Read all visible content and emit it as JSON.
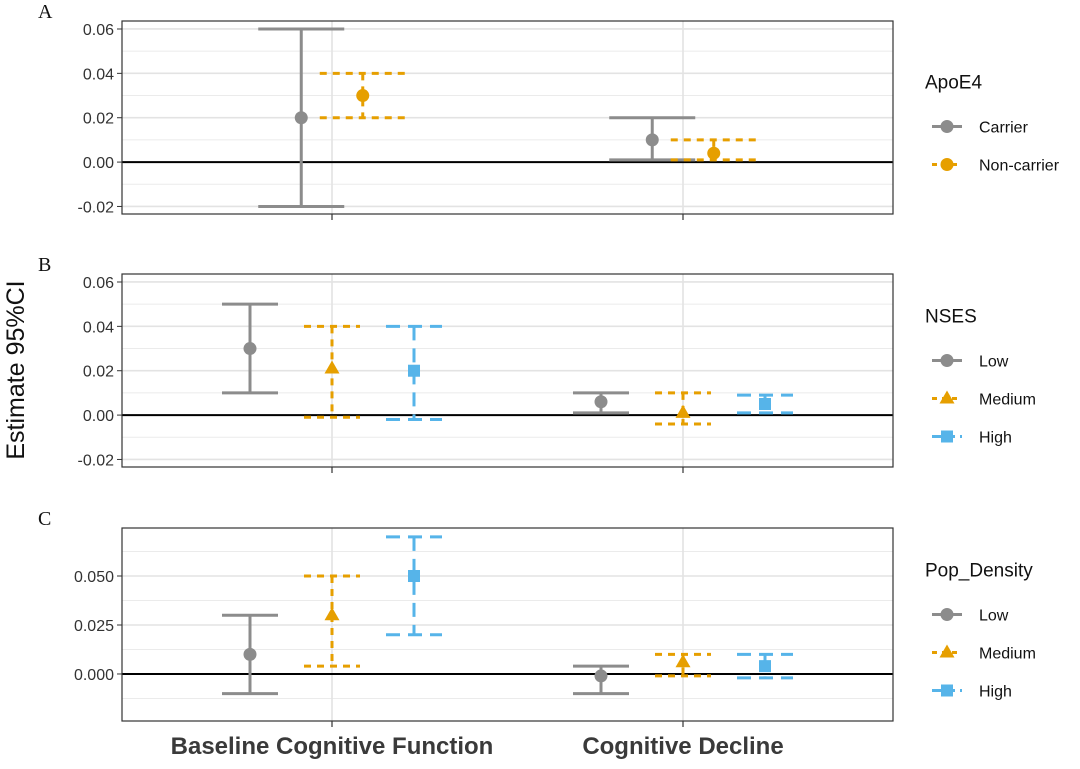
{
  "chart_data": {
    "type": "errorbar",
    "ylabel": "Estimate 95%CI",
    "categories": [
      "Baseline Cognitive Function",
      "Cognitive Decline"
    ],
    "grid": true,
    "legend_placement": "right",
    "panels": [
      {
        "letter": "A",
        "legend_title": "ApoE4",
        "ylim": [
          -0.0234,
          0.0636
        ],
        "yticks": [
          -0.02,
          0.0,
          0.02,
          0.04,
          0.06
        ],
        "ytick_labels": [
          "-0.02",
          "0.00",
          "0.02",
          "0.04",
          "0.06"
        ],
        "series": [
          {
            "name": "Carrier",
            "color": "#8c8c8c",
            "linetype": "solid",
            "shape": "circle",
            "estimate": [
              0.02,
              0.01
            ],
            "lower": [
              -0.02,
              0.001
            ],
            "upper": [
              0.06,
              0.02
            ]
          },
          {
            "name": "Non-carrier",
            "color": "#E69F00",
            "linetype": "dotted",
            "shape": "circle",
            "estimate": [
              0.03,
              0.004
            ],
            "lower": [
              0.02,
              0.001
            ],
            "upper": [
              0.04,
              0.01
            ]
          }
        ]
      },
      {
        "letter": "B",
        "legend_title": "NSES",
        "ylim": [
          -0.0234,
          0.0636
        ],
        "yticks": [
          -0.02,
          0.0,
          0.02,
          0.04,
          0.06
        ],
        "ytick_labels": [
          "-0.02",
          "0.00",
          "0.02",
          "0.04",
          "0.06"
        ],
        "series": [
          {
            "name": "Low",
            "color": "#8c8c8c",
            "linetype": "solid",
            "shape": "circle",
            "estimate": [
              0.03,
              0.006
            ],
            "lower": [
              0.01,
              0.001
            ],
            "upper": [
              0.05,
              0.01
            ]
          },
          {
            "name": "Medium",
            "color": "#E69F00",
            "linetype": "dotted",
            "shape": "triangle",
            "estimate": [
              0.021,
              0.001
            ],
            "lower": [
              -0.001,
              -0.004
            ],
            "upper": [
              0.04,
              0.01
            ]
          },
          {
            "name": "High",
            "color": "#56B4E9",
            "linetype": "dashed",
            "shape": "square",
            "estimate": [
              0.02,
              0.005
            ],
            "lower": [
              -0.002,
              0.001
            ],
            "upper": [
              0.04,
              0.009
            ]
          }
        ]
      },
      {
        "letter": "C",
        "legend_title": "Pop_Density",
        "ylim": [
          -0.024,
          0.0745
        ],
        "yticks": [
          0.0,
          0.025,
          0.05
        ],
        "ytick_labels": [
          "0.000",
          "0.025",
          "0.050"
        ],
        "series": [
          {
            "name": "Low",
            "color": "#8c8c8c",
            "linetype": "solid",
            "shape": "circle",
            "estimate": [
              0.01,
              -0.001
            ],
            "lower": [
              -0.01,
              -0.01
            ],
            "upper": [
              0.03,
              0.004
            ]
          },
          {
            "name": "Medium",
            "color": "#E69F00",
            "linetype": "dotted",
            "shape": "triangle",
            "estimate": [
              0.03,
              0.006
            ],
            "lower": [
              0.004,
              -0.001
            ],
            "upper": [
              0.05,
              0.01
            ]
          },
          {
            "name": "High",
            "color": "#56B4E9",
            "linetype": "dashed",
            "shape": "square",
            "estimate": [
              0.05,
              0.004
            ],
            "lower": [
              0.02,
              -0.002
            ],
            "upper": [
              0.07,
              0.01
            ]
          }
        ]
      }
    ]
  }
}
